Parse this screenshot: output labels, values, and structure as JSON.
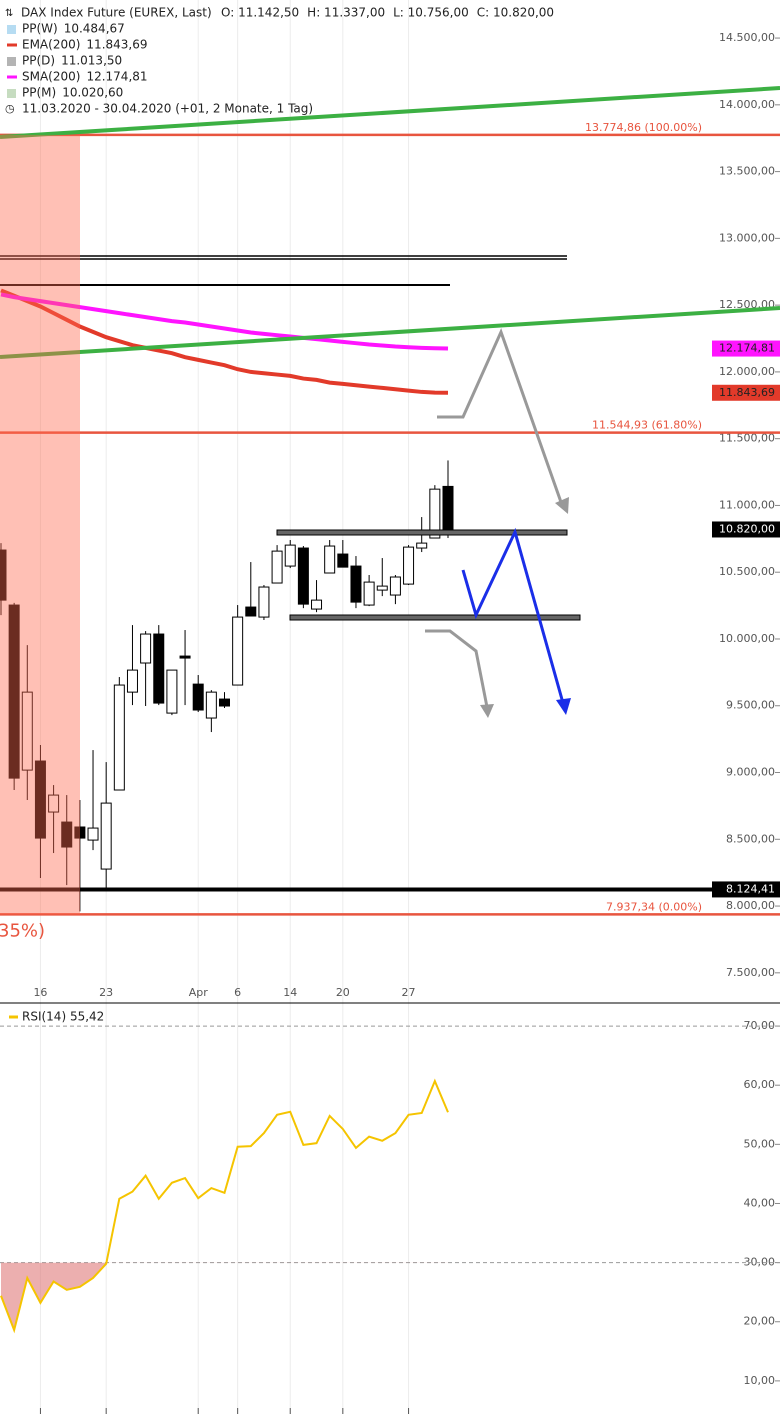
{
  "chart_data": [
    {
      "type": "candlestick",
      "title": "DAX Index Future (EUREX, Last)",
      "ohlc_readout": [
        "O: 11.142,50",
        "H: 11.337,00",
        "L: 10.756,00",
        "C: 10.820,00"
      ],
      "period": "11.03.2020 - 30.04.2020 (+01, 2 Monate, 1 Tag)",
      "categories": [
        null,
        null,
        null,
        "16",
        null,
        null,
        null,
        null,
        "23",
        null,
        null,
        null,
        null,
        null,
        null,
        "Apr",
        null,
        null,
        "6",
        null,
        null,
        null,
        "14",
        null,
        null,
        null,
        "20",
        null,
        null,
        null,
        null,
        "27",
        null,
        null,
        null
      ],
      "open": [
        10666,
        10254,
        9018,
        9086,
        8704,
        8629,
        8592,
        8494,
        8277,
        8869,
        9602,
        9820,
        10037,
        9445,
        9872,
        9662,
        9408,
        9550,
        9655,
        10239,
        10164,
        10419,
        10546,
        10681,
        10224,
        10494,
        10636,
        10546,
        10254,
        10366,
        10329,
        10411,
        10681,
        10756,
        11142.5
      ],
      "high": [
        10718,
        10270,
        9954,
        9206,
        8906,
        8831,
        8794,
        9168,
        9078,
        9715,
        10104,
        10059,
        10104,
        9767,
        10067,
        9730,
        9617,
        9602,
        10254,
        10576,
        10404,
        10703,
        10741,
        10696,
        10441,
        10741,
        10741,
        10621,
        10479,
        10606,
        10479,
        10703,
        10913,
        11152,
        11337
      ],
      "low": [
        10179,
        8869,
        8794,
        8210,
        8397,
        8157,
        7960,
        8419,
        8135,
        8869,
        9505,
        9498,
        9505,
        9430,
        9505,
        9453,
        9303,
        9483,
        9655,
        10172,
        10142,
        10419,
        10531,
        10231,
        10201,
        10494,
        10538,
        10231,
        10246,
        10321,
        10261,
        10404,
        10651,
        10756,
        10756
      ],
      "close": [
        10291,
        8958,
        9602,
        8509,
        8831,
        8442,
        8509,
        8584,
        8771,
        9655,
        9767,
        10037,
        9520,
        9767,
        9857,
        9468,
        9602,
        9498,
        10164,
        10172,
        10389,
        10658,
        10703,
        10261,
        10291,
        10696,
        10538,
        10276,
        10426,
        10396,
        10464,
        10688,
        10718,
        11122,
        10820
      ],
      "up_color": "#ffffff",
      "down_color": "#000000",
      "series": [
        {
          "name": "EMA(200)",
          "readout": "11.843,69",
          "color": "#e23a2a",
          "values": [
            12610,
            12570,
            12530,
            12490,
            12440,
            12390,
            12340,
            12300,
            12260,
            12230,
            12200,
            12180,
            12160,
            12140,
            12110,
            12090,
            12070,
            12050,
            12020,
            12000,
            11990,
            11980,
            11970,
            11950,
            11940,
            11920,
            11910,
            11900,
            11890,
            11880,
            11870,
            11860,
            11850,
            11845,
            11843.69
          ]
        },
        {
          "name": "SMA(200)",
          "readout": "12.174,81",
          "color": "#ff14ff",
          "values": [
            12580,
            12560,
            12545,
            12530,
            12515,
            12500,
            12485,
            12470,
            12455,
            12440,
            12425,
            12410,
            12395,
            12380,
            12370,
            12355,
            12340,
            12325,
            12310,
            12295,
            12285,
            12275,
            12265,
            12255,
            12245,
            12235,
            12225,
            12215,
            12205,
            12198,
            12190,
            12185,
            12180,
            12177,
            12174.81
          ]
        }
      ],
      "pivots": [
        {
          "name": "PP(W)",
          "readout": "10.484,67",
          "color": "#b6dcf2"
        },
        {
          "name": "PP(D)",
          "readout": "11.013,50",
          "color": "#b4b4b4"
        },
        {
          "name": "PP(M)",
          "readout": "10.020,60",
          "color": "#c6dcc0"
        }
      ],
      "fib_levels": [
        {
          "value": 13774.86,
          "label": "13.774,86 (100.00%)"
        },
        {
          "value": 11544.93,
          "label": "11.544,93 (61.80%)"
        },
        {
          "value": 7937.34,
          "label": "7.937,34 (0.00%)"
        }
      ],
      "fib_color": "#e8553f",
      "cut_label": "35%)",
      "badges": [
        {
          "value": 12174.81,
          "label": "12.174,81",
          "color": "#ff14ff",
          "text_color": "#222222"
        },
        {
          "value": 11843.69,
          "label": "11.843,69",
          "color": "#e23a2a",
          "text_color": "#222222"
        },
        {
          "value": 10820,
          "label": "10.820,00",
          "color": "#000000",
          "text_color": "#ffffff"
        },
        {
          "value": 8124.41,
          "label": "8.124,41",
          "color": "#000000",
          "text_color": "#ffffff"
        }
      ],
      "price_lines": [
        8124.41
      ],
      "ylim": [
        7274,
        14785
      ],
      "yticks": [
        {
          "value": 7500,
          "label": "7.500,00"
        },
        {
          "value": 8000,
          "label": "8.000,00"
        },
        {
          "value": 8500,
          "label": "8.500,00"
        },
        {
          "value": 9000,
          "label": "9.000,00"
        },
        {
          "value": 9500,
          "label": "9.500,00"
        },
        {
          "value": 10000,
          "label": "10.000,00"
        },
        {
          "value": 10500,
          "label": "10.500,00"
        },
        {
          "value": 11000,
          "label": "11.000,00"
        },
        {
          "value": 11500,
          "label": "11.500,00"
        },
        {
          "value": 12000,
          "label": "12.000,00"
        },
        {
          "value": 12500,
          "label": "12.500,00"
        },
        {
          "value": 13000,
          "label": "13.000,00"
        },
        {
          "value": 13500,
          "label": "13.500,00"
        },
        {
          "value": 14000,
          "label": "14.000,00"
        },
        {
          "value": 14500,
          "label": "14.500,00"
        }
      ],
      "grid": true
    },
    {
      "type": "line",
      "title": "RSI(14) 55,42",
      "series": [
        {
          "name": "RSI(14)",
          "color": "#f5c400",
          "values": [
            24.4,
            18.6,
            27.4,
            23.2,
            26.8,
            25.4,
            25.9,
            27.4,
            29.8,
            40.8,
            42.0,
            44.7,
            40.8,
            43.5,
            44.3,
            40.9,
            42.6,
            41.8,
            49.6,
            49.7,
            51.9,
            55.0,
            55.5,
            49.9,
            50.2,
            54.8,
            52.6,
            49.4,
            51.3,
            50.6,
            51.9,
            55.0,
            55.3,
            60.7,
            55.42
          ]
        }
      ],
      "levels": [
        70,
        30
      ],
      "oversold_color": "#e07a7a",
      "ylim": [
        4.4,
        73.9
      ],
      "yticks": [
        {
          "value": 10,
          "label": "10,00"
        },
        {
          "value": 20,
          "label": "20,00"
        },
        {
          "value": 30,
          "label": "30,00"
        },
        {
          "value": 40,
          "label": "40,00"
        },
        {
          "value": 50,
          "label": "50,00"
        },
        {
          "value": 60,
          "label": "60,00"
        },
        {
          "value": 70,
          "label": "70,00"
        }
      ],
      "grid": true
    }
  ]
}
